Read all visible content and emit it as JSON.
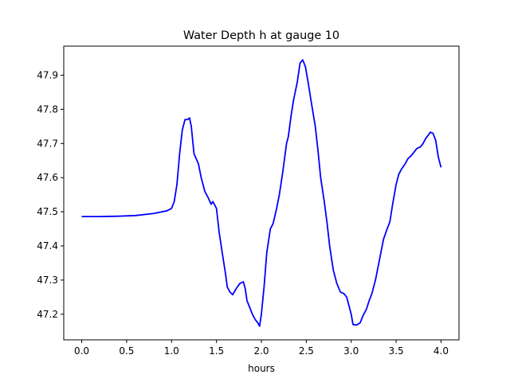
{
  "chart_data": {
    "type": "line",
    "title": "Water Depth h at gauge 10",
    "xlabel": "hours",
    "ylabel": "",
    "xlim": [
      -0.2,
      4.2
    ],
    "ylim": [
      47.125,
      47.985
    ],
    "grid": false,
    "line_color": "#0000ff",
    "x_ticks": [
      0.0,
      0.5,
      1.0,
      1.5,
      2.0,
      2.5,
      3.0,
      3.5,
      4.0
    ],
    "x_tick_labels": [
      "0.0",
      "0.5",
      "1.0",
      "1.5",
      "2.0",
      "2.5",
      "3.0",
      "3.5",
      "4.0"
    ],
    "y_ticks": [
      47.2,
      47.3,
      47.4,
      47.5,
      47.6,
      47.7,
      47.8,
      47.9
    ],
    "y_tick_labels": [
      "47.2",
      "47.3",
      "47.4",
      "47.5",
      "47.6",
      "47.7",
      "47.8",
      "47.9"
    ],
    "series": [
      {
        "points": [
          [
            0.0,
            47.486
          ],
          [
            0.2,
            47.486
          ],
          [
            0.4,
            47.487
          ],
          [
            0.6,
            47.489
          ],
          [
            0.8,
            47.495
          ],
          [
            0.95,
            47.503
          ],
          [
            1.0,
            47.51
          ],
          [
            1.03,
            47.53
          ],
          [
            1.06,
            47.58
          ],
          [
            1.09,
            47.67
          ],
          [
            1.12,
            47.74
          ],
          [
            1.15,
            47.77
          ],
          [
            1.18,
            47.77
          ],
          [
            1.2,
            47.775
          ],
          [
            1.22,
            47.75
          ],
          [
            1.25,
            47.67
          ],
          [
            1.3,
            47.64
          ],
          [
            1.33,
            47.6
          ],
          [
            1.37,
            47.56
          ],
          [
            1.41,
            47.54
          ],
          [
            1.44,
            47.522
          ],
          [
            1.46,
            47.53
          ],
          [
            1.5,
            47.51
          ],
          [
            1.53,
            47.44
          ],
          [
            1.57,
            47.37
          ],
          [
            1.6,
            47.32
          ],
          [
            1.62,
            47.28
          ],
          [
            1.65,
            47.265
          ],
          [
            1.68,
            47.257
          ],
          [
            1.72,
            47.275
          ],
          [
            1.76,
            47.29
          ],
          [
            1.8,
            47.295
          ],
          [
            1.82,
            47.275
          ],
          [
            1.84,
            47.24
          ],
          [
            1.87,
            47.22
          ],
          [
            1.9,
            47.2
          ],
          [
            1.93,
            47.185
          ],
          [
            1.96,
            47.175
          ],
          [
            1.98,
            47.165
          ],
          [
            2.0,
            47.2
          ],
          [
            2.03,
            47.28
          ],
          [
            2.06,
            47.38
          ],
          [
            2.1,
            47.45
          ],
          [
            2.13,
            47.465
          ],
          [
            2.17,
            47.51
          ],
          [
            2.2,
            47.55
          ],
          [
            2.24,
            47.62
          ],
          [
            2.28,
            47.7
          ],
          [
            2.3,
            47.72
          ],
          [
            2.33,
            47.78
          ],
          [
            2.36,
            47.83
          ],
          [
            2.4,
            47.88
          ],
          [
            2.43,
            47.935
          ],
          [
            2.46,
            47.945
          ],
          [
            2.49,
            47.925
          ],
          [
            2.52,
            47.88
          ],
          [
            2.55,
            47.83
          ],
          [
            2.6,
            47.75
          ],
          [
            2.63,
            47.68
          ],
          [
            2.66,
            47.6
          ],
          [
            2.7,
            47.53
          ],
          [
            2.73,
            47.47
          ],
          [
            2.76,
            47.4
          ],
          [
            2.8,
            47.33
          ],
          [
            2.84,
            47.29
          ],
          [
            2.88,
            47.265
          ],
          [
            2.92,
            47.26
          ],
          [
            2.95,
            47.25
          ],
          [
            2.98,
            47.22
          ],
          [
            3.0,
            47.2
          ],
          [
            3.02,
            47.17
          ],
          [
            3.06,
            47.168
          ],
          [
            3.1,
            47.175
          ],
          [
            3.13,
            47.195
          ],
          [
            3.17,
            47.215
          ],
          [
            3.2,
            47.24
          ],
          [
            3.23,
            47.26
          ],
          [
            3.27,
            47.3
          ],
          [
            3.3,
            47.34
          ],
          [
            3.33,
            47.38
          ],
          [
            3.36,
            47.42
          ],
          [
            3.4,
            47.45
          ],
          [
            3.43,
            47.47
          ],
          [
            3.46,
            47.52
          ],
          [
            3.5,
            47.58
          ],
          [
            3.53,
            47.61
          ],
          [
            3.56,
            47.625
          ],
          [
            3.6,
            47.64
          ],
          [
            3.63,
            47.655
          ],
          [
            3.67,
            47.665
          ],
          [
            3.7,
            47.675
          ],
          [
            3.73,
            47.685
          ],
          [
            3.77,
            47.69
          ],
          [
            3.8,
            47.7
          ],
          [
            3.83,
            47.715
          ],
          [
            3.86,
            47.725
          ],
          [
            3.88,
            47.733
          ],
          [
            3.91,
            47.73
          ],
          [
            3.94,
            47.71
          ],
          [
            3.97,
            47.66
          ],
          [
            4.0,
            47.63
          ]
        ]
      }
    ]
  }
}
